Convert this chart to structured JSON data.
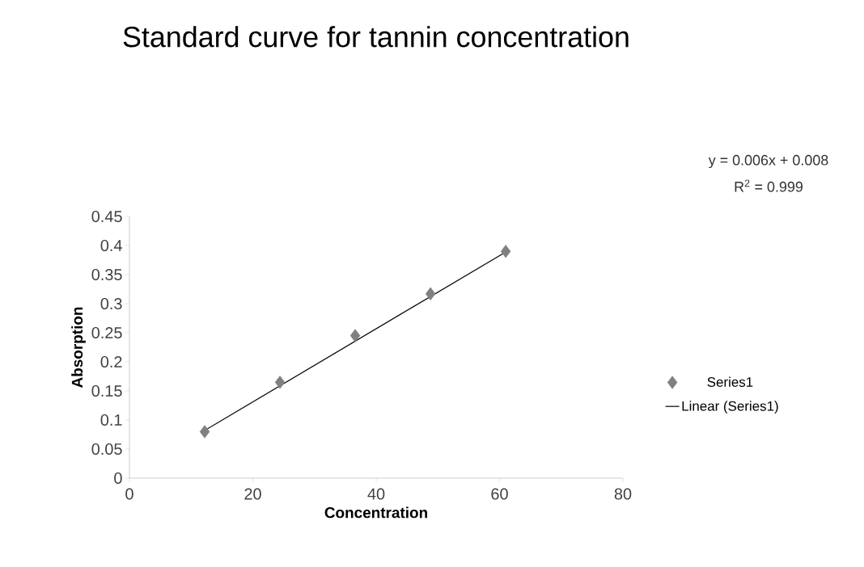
{
  "chart_data": {
    "type": "scatter",
    "title": "Standard curve for tannin concentration",
    "xlabel": "Concentration",
    "ylabel": "Absorption",
    "annotations": [
      "y = 0.006x + 0.008",
      "R$^{2}$ = 0.999"
    ],
    "series": [
      {
        "name": "Series1",
        "color": "#808080",
        "marker": "diamond",
        "x": [
          12.2,
          24.4,
          36.6,
          48.8,
          61.0
        ],
        "values": [
          0.08,
          0.165,
          0.245,
          0.317,
          0.39
        ]
      },
      {
        "name": "Linear (Series1)",
        "type": "line",
        "color": "#000000",
        "marker": "none",
        "line_style": "solid",
        "x": [
          12.2,
          61.0
        ],
        "values": [
          0.082,
          0.389
        ]
      }
    ],
    "xlim": [
      0,
      80
    ],
    "ylim": [
      0,
      0.45
    ],
    "xticks": [
      0,
      20,
      40,
      60,
      80
    ],
    "yticks": [
      0,
      0.05,
      0.1,
      0.15,
      0.2,
      0.25,
      0.3,
      0.35,
      0.4,
      0.45
    ],
    "grid": false,
    "legend": "right"
  }
}
